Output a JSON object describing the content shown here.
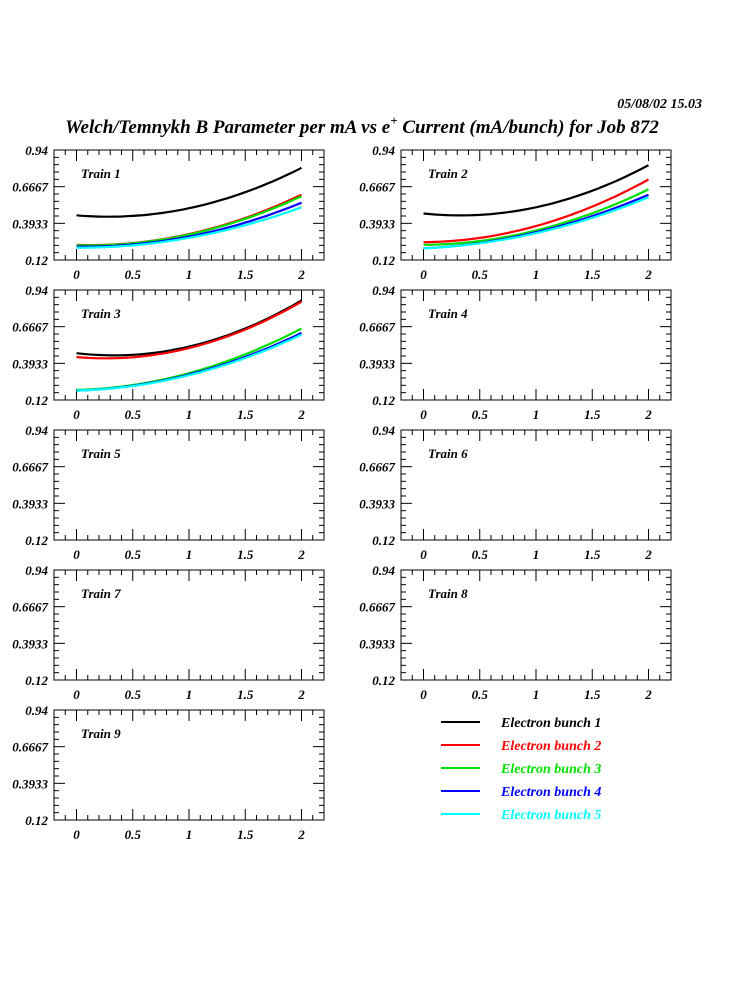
{
  "header": {
    "timestamp": "05/08/02   15.03",
    "title_main": "Welch/Temnykh B Parameter per mA vs e",
    "title_sup": "+",
    "title_rest": " Current (mA/bunch) for Job 872"
  },
  "chart_data": {
    "type": "line",
    "title": "Welch/Temnykh B Parameter per mA vs e+ Current (mA/bunch) for Job 872",
    "xlabel": "e+ Current (mA/bunch)",
    "ylabel": "B Parameter per mA",
    "xlim": [
      -0.2,
      2.2
    ],
    "ylim": [
      0.12,
      0.94
    ],
    "x_ticks": [
      "0",
      "0.5",
      "1",
      "1.5",
      "2"
    ],
    "x_tick_values": [
      0,
      0.5,
      1,
      1.5,
      2
    ],
    "y_ticks": [
      "0.12",
      "0.3933",
      "0.6667",
      "0.94"
    ],
    "y_tick_values": [
      0.12,
      0.3933,
      0.6667,
      0.94
    ],
    "x": [
      0,
      1,
      2
    ],
    "series_names": [
      "Electron bunch 1",
      "Electron bunch 2",
      "Electron bunch 3",
      "Electron bunch 4",
      "Electron bunch 5"
    ],
    "series_colors": [
      "#000000",
      "#ff0000",
      "#00e000",
      "#0000ff",
      "#00ffff"
    ],
    "panels": [
      {
        "label": "Train 1",
        "series": [
          {
            "name": "Electron bunch 1",
            "values": [
              0.453,
              0.506,
              0.807
            ]
          },
          {
            "name": "Electron bunch 2",
            "values": [
              0.233,
              0.313,
              0.607
            ]
          },
          {
            "name": "Electron bunch 3",
            "values": [
              0.23,
              0.31,
              0.595
            ]
          },
          {
            "name": "Electron bunch 4",
            "values": [
              0.22,
              0.295,
              0.547
            ]
          },
          {
            "name": "Electron bunch 5",
            "values": [
              0.212,
              0.285,
              0.513
            ]
          }
        ]
      },
      {
        "label": "Train 2",
        "series": [
          {
            "name": "Electron bunch 1",
            "values": [
              0.467,
              0.513,
              0.827
            ]
          },
          {
            "name": "Electron bunch 2",
            "values": [
              0.253,
              0.373,
              0.72
            ]
          },
          {
            "name": "Electron bunch 3",
            "values": [
              0.233,
              0.34,
              0.647
            ]
          },
          {
            "name": "Electron bunch 4",
            "values": [
              0.207,
              0.327,
              0.607
            ]
          },
          {
            "name": "Electron bunch 5",
            "values": [
              0.207,
              0.32,
              0.587
            ]
          }
        ]
      },
      {
        "label": "Train 3",
        "series": [
          {
            "name": "Electron bunch 1",
            "values": [
              0.469,
              0.518,
              0.862
            ]
          },
          {
            "name": "Electron bunch 2",
            "values": [
              0.44,
              0.507,
              0.853
            ]
          },
          {
            "name": "Electron bunch 3",
            "values": [
              0.195,
              0.32,
              0.653
            ]
          },
          {
            "name": "Electron bunch 4",
            "values": [
              0.19,
              0.31,
              0.62
            ]
          },
          {
            "name": "Electron bunch 5",
            "values": [
              0.19,
              0.305,
              0.607
            ]
          }
        ]
      },
      {
        "label": "Train 4",
        "series": []
      },
      {
        "label": "Train 5",
        "series": []
      },
      {
        "label": "Train 6",
        "series": []
      },
      {
        "label": "Train 7",
        "series": []
      },
      {
        "label": "Train 8",
        "series": []
      },
      {
        "label": "Train 9",
        "series": []
      }
    ],
    "legend": [
      "Electron bunch 1",
      "Electron bunch 2",
      "Electron bunch 3",
      "Electron bunch 4",
      "Electron bunch 5"
    ],
    "legend_placement": "bottom-right"
  }
}
